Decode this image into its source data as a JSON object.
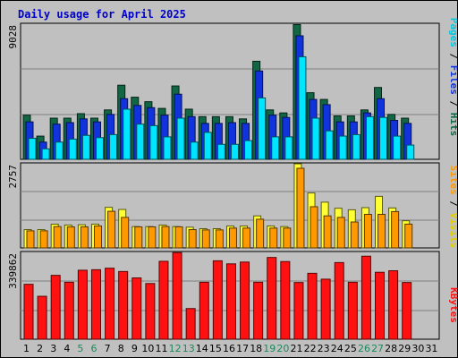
{
  "title": "Daily usage for April 2025",
  "colors": {
    "background": "#c0c0c0",
    "hits": "#116644",
    "files": "#1133dd",
    "pages": "#00e5ff",
    "visits": "#ffff33",
    "sites": "#ff9900",
    "kbytes": "#ff1111",
    "weekend_label": "#1a8a5a",
    "weekday_label": "#000000"
  },
  "chart_data": [
    {
      "type": "bar",
      "title": "Hits / Files / Pages",
      "ylabel_parts": [
        "Pages",
        "Files",
        "Hits"
      ],
      "y_max_label": "9028",
      "ylim": [
        0,
        9028
      ],
      "categories": [
        "1",
        "2",
        "3",
        "4",
        "5",
        "6",
        "7",
        "8",
        "9",
        "10",
        "11",
        "12",
        "13",
        "14",
        "15",
        "16",
        "17",
        "18",
        "19",
        "20",
        "21",
        "22",
        "23",
        "24",
        "25",
        "26",
        "27",
        "28",
        "29",
        "30",
        "31"
      ],
      "series": [
        {
          "name": "Hits",
          "values": [
            2950,
            1550,
            2750,
            2750,
            3050,
            2750,
            3300,
            4950,
            4150,
            3850,
            3400,
            4900,
            3350,
            2850,
            2850,
            2850,
            2700,
            6550,
            3300,
            3100,
            9000,
            4450,
            4000,
            2900,
            2900,
            3300,
            4800,
            3000,
            2750,
            null,
            null
          ]
        },
        {
          "name": "Files",
          "values": [
            2500,
            1150,
            2350,
            2450,
            2700,
            2500,
            3000,
            4050,
            3600,
            3450,
            2950,
            4350,
            2850,
            2400,
            2400,
            2450,
            2400,
            5900,
            2950,
            2800,
            8250,
            4000,
            3650,
            2500,
            2500,
            3100,
            4050,
            2600,
            2400,
            null,
            null
          ]
        },
        {
          "name": "Pages",
          "values": [
            1400,
            700,
            1150,
            1350,
            1600,
            1450,
            1650,
            3350,
            2350,
            2250,
            1500,
            2750,
            1150,
            1800,
            1000,
            1000,
            1250,
            4100,
            1500,
            1500,
            6850,
            2750,
            1900,
            1550,
            1650,
            2850,
            2800,
            1550,
            950,
            null,
            null
          ]
        }
      ]
    },
    {
      "type": "bar",
      "title": "Visits / Sites",
      "ylabel_parts": [
        "Sites",
        "Visits"
      ],
      "y_max_label": "2757",
      "ylim": [
        0,
        2757
      ],
      "series": [
        {
          "name": "Visits",
          "values": [
            600,
            600,
            780,
            750,
            760,
            780,
            1330,
            1260,
            700,
            700,
            750,
            700,
            680,
            630,
            630,
            720,
            720,
            1050,
            720,
            700,
            2757,
            1800,
            1500,
            1300,
            1250,
            1320,
            1690,
            1310,
            890,
            null,
            null
          ]
        },
        {
          "name": "Sites",
          "values": [
            560,
            560,
            700,
            690,
            690,
            720,
            1200,
            1000,
            690,
            690,
            700,
            690,
            600,
            590,
            590,
            650,
            650,
            940,
            650,
            650,
            2610,
            1350,
            1050,
            1000,
            850,
            1100,
            1100,
            1190,
            780,
            null,
            null
          ]
        }
      ]
    },
    {
      "type": "bar",
      "title": "KBytes",
      "ylabel_parts": [
        "KBytes"
      ],
      "y_max_label": "339862",
      "ylim": [
        0,
        339862
      ],
      "series": [
        {
          "name": "KBytes",
          "values": [
            215000,
            168000,
            250000,
            223000,
            270000,
            272000,
            278000,
            265000,
            240000,
            218000,
            305000,
            339000,
            120000,
            223000,
            307000,
            295000,
            302000,
            223000,
            320000,
            304000,
            222000,
            258000,
            235000,
            300000,
            223000,
            325000,
            262000,
            268000,
            222000,
            null,
            null
          ]
        }
      ]
    }
  ],
  "x_labels": [
    {
      "label": "1",
      "weekend": false
    },
    {
      "label": "2",
      "weekend": false
    },
    {
      "label": "3",
      "weekend": false
    },
    {
      "label": "4",
      "weekend": false
    },
    {
      "label": "5",
      "weekend": true
    },
    {
      "label": "6",
      "weekend": true
    },
    {
      "label": "7",
      "weekend": false
    },
    {
      "label": "8",
      "weekend": false
    },
    {
      "label": "9",
      "weekend": false
    },
    {
      "label": "10",
      "weekend": false
    },
    {
      "label": "11",
      "weekend": false
    },
    {
      "label": "12",
      "weekend": true
    },
    {
      "label": "13",
      "weekend": true
    },
    {
      "label": "14",
      "weekend": false
    },
    {
      "label": "15",
      "weekend": false
    },
    {
      "label": "16",
      "weekend": false
    },
    {
      "label": "17",
      "weekend": false
    },
    {
      "label": "18",
      "weekend": false
    },
    {
      "label": "19",
      "weekend": true
    },
    {
      "label": "20",
      "weekend": true
    },
    {
      "label": "21",
      "weekend": false
    },
    {
      "label": "22",
      "weekend": false
    },
    {
      "label": "23",
      "weekend": false
    },
    {
      "label": "24",
      "weekend": false
    },
    {
      "label": "25",
      "weekend": false
    },
    {
      "label": "26",
      "weekend": true
    },
    {
      "label": "27",
      "weekend": true
    },
    {
      "label": "28",
      "weekend": false
    },
    {
      "label": "29",
      "weekend": false
    },
    {
      "label": "30",
      "weekend": false
    },
    {
      "label": "31",
      "weekend": false
    }
  ]
}
